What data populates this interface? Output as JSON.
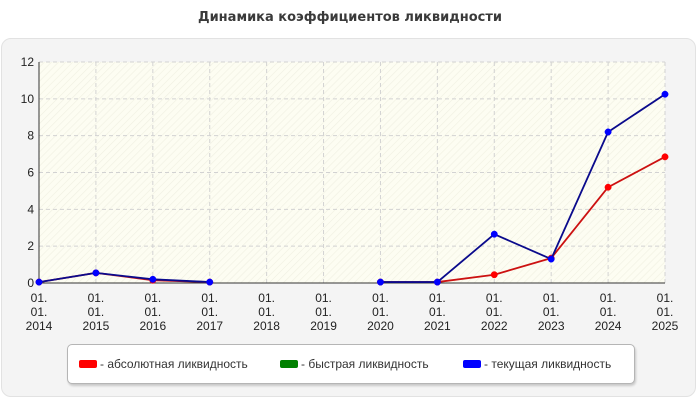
{
  "chart_data": {
    "type": "line",
    "title": "Динамика коэффициентов ликвидности",
    "x": [
      "01.01.2014",
      "01.01.2015",
      "01.01.2016",
      "01.01.2017",
      "01.01.2018",
      "01.01.2019",
      "01.01.2020",
      "01.01.2021",
      "01.01.2022",
      "01.01.2023",
      "01.01.2024",
      "01.01.2025"
    ],
    "x_tick_labels": [
      [
        "01.",
        "01.",
        "2014"
      ],
      [
        "01.",
        "01.",
        "2015"
      ],
      [
        "01.",
        "01.",
        "2016"
      ],
      [
        "01.",
        "01.",
        "2017"
      ],
      [
        "01.",
        "01.",
        "2018"
      ],
      [
        "01.",
        "01.",
        "2019"
      ],
      [
        "01.",
        "01.",
        "2020"
      ],
      [
        "01.",
        "01.",
        "2021"
      ],
      [
        "01.",
        "01.",
        "2022"
      ],
      [
        "01.",
        "01.",
        "2023"
      ],
      [
        "01.",
        "01.",
        "2024"
      ],
      [
        "01.",
        "01.",
        "2025"
      ]
    ],
    "ylim": [
      0,
      12
    ],
    "y_ticks": [
      0,
      2,
      4,
      6,
      8,
      10,
      12
    ],
    "grid": true,
    "legend_position": "bottom",
    "series": [
      {
        "name": "- абсолютная ликвидность",
        "color": "#ff0000",
        "line_color": "#cc1111",
        "values": [
          0.05,
          0.55,
          0.15,
          0.05,
          null,
          null,
          0.05,
          0.05,
          0.45,
          1.35,
          5.2,
          6.85
        ]
      },
      {
        "name": "- быстрая ликвидность",
        "color": "#008000",
        "line_color": "#008000",
        "values": [
          null,
          null,
          null,
          null,
          null,
          null,
          null,
          null,
          null,
          null,
          null,
          null
        ]
      },
      {
        "name": "- текущая ликвидность",
        "color": "#0000ff",
        "line_color": "#0a0a8c",
        "values": [
          0.05,
          0.55,
          0.2,
          0.05,
          null,
          null,
          0.05,
          0.05,
          2.65,
          1.3,
          8.2,
          10.25
        ]
      }
    ]
  }
}
